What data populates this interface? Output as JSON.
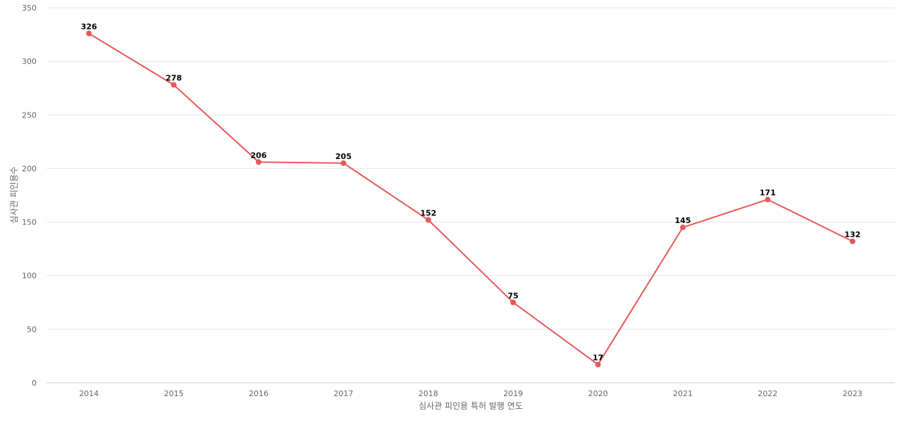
{
  "chart_data": {
    "type": "line",
    "x": [
      "2014",
      "2015",
      "2016",
      "2017",
      "2018",
      "2019",
      "2020",
      "2021",
      "2022",
      "2023"
    ],
    "series": [
      {
        "values": [
          326,
          278,
          206,
          205,
          152,
          75,
          17,
          145,
          171,
          132
        ],
        "color": "#e8585a"
      }
    ],
    "yticks": [
      0,
      50,
      100,
      150,
      200,
      250,
      300,
      350
    ],
    "ylim": [
      0,
      350
    ],
    "xlabel": "심사관 피인용 특허 발행 연도",
    "ylabel": "심사관 피인용수",
    "grid": true,
    "legend": "none",
    "colors": {
      "grid": "#e6e6e6",
      "axis": "#cccccc",
      "tick_text": "#666666",
      "label_text": "#000000"
    }
  }
}
